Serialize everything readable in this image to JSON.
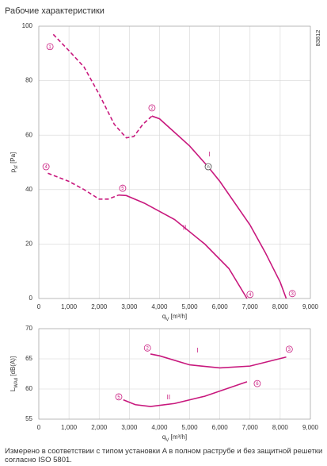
{
  "title": "Рабочие характеристики",
  "code": "83812",
  "chart_data": [
    {
      "type": "line",
      "ylabel": {
        "main": "p",
        "sub": "sf",
        "unit": " [Pa]"
      },
      "xlabel": {
        "main": "q",
        "sub": "V",
        "unit": " [m³/h]"
      },
      "xlim": [
        0,
        9000
      ],
      "ylim": [
        0,
        100
      ],
      "grid": true,
      "color": "#c8187d",
      "xticks": [
        0,
        {
          "value": 1000,
          "label": "1,000"
        },
        {
          "value": 2000,
          "label": "2,000"
        },
        {
          "value": 3000,
          "label": "3,000"
        },
        {
          "value": 4000,
          "label": "4,000"
        },
        {
          "value": 5000,
          "label": "5,000"
        },
        {
          "value": 6000,
          "label": "6,000"
        },
        {
          "value": 7000,
          "label": "7,000"
        },
        {
          "value": 8000,
          "label": "8,000"
        },
        {
          "value": 9000,
          "label": "9,000"
        }
      ],
      "yticks": [
        0,
        20,
        40,
        60,
        80,
        100
      ],
      "series": [
        {
          "line_style": "dashed",
          "x": [
            480,
            1000,
            1500,
            2000,
            2500,
            2900,
            3150,
            3450,
            3750
          ],
          "values": [
            97,
            91,
            85,
            75,
            64,
            59,
            59.5,
            64,
            67
          ]
        },
        {
          "line_style": "solid",
          "x": [
            3750,
            4000,
            4500,
            5000,
            5600,
            6000,
            7000,
            7500,
            8000,
            8200
          ],
          "values": [
            67,
            66,
            61,
            56,
            48.5,
            43,
            27,
            17,
            6,
            0
          ]
        },
        {
          "line_style": "dashed",
          "x": [
            300,
            1000,
            1500,
            2000,
            2300,
            2650
          ],
          "values": [
            46,
            43,
            40,
            36.5,
            36.5,
            38
          ]
        },
        {
          "line_style": "solid",
          "x": [
            2650,
            2900,
            3500,
            4500,
            5500,
            6300,
            6900
          ],
          "values": [
            38,
            37.8,
            35,
            29,
            20,
            11,
            0
          ]
        }
      ],
      "annotations": [
        {
          "text": "1",
          "x": 370,
          "y": 92.5,
          "circle": true
        },
        {
          "text": "2",
          "x": 3750,
          "y": 70,
          "circle": true
        },
        {
          "text": "n",
          "x": 5615,
          "y": 48.4,
          "circle": true,
          "color": "#444"
        },
        {
          "text": "3",
          "x": 8400,
          "y": 1.8,
          "circle": true
        },
        {
          "text": "4",
          "x": 7000,
          "y": 1.5,
          "circle": true
        },
        {
          "text": "5",
          "x": 2780,
          "y": 40.5,
          "circle": true
        },
        {
          "text": "4",
          "x": 240,
          "y": 48.4,
          "circle": true
        },
        {
          "text": "I",
          "x": 5650,
          "y": 53,
          "circle": false
        },
        {
          "text": "II",
          "x": 4830,
          "y": 26,
          "circle": false
        }
      ]
    },
    {
      "type": "line",
      "ylabel": {
        "main": "L",
        "sub": "WAd",
        "unit": " [dB(A)]"
      },
      "xlabel": {
        "main": "q",
        "sub": "V",
        "unit": " [m³/h]"
      },
      "xlim": [
        0,
        9000
      ],
      "ylim": [
        55,
        70
      ],
      "grid": true,
      "color": "#c8187d",
      "xticks": [
        0,
        {
          "value": 1000,
          "label": "1,000"
        },
        {
          "value": 2000,
          "label": "2,000"
        },
        {
          "value": 3000,
          "label": "3,000"
        },
        {
          "value": 4000,
          "label": "4,000"
        },
        {
          "value": 5000,
          "label": "5,000"
        },
        {
          "value": 6000,
          "label": "6,000"
        },
        {
          "value": 7000,
          "label": "7,000"
        },
        {
          "value": 8000,
          "label": "8,000"
        },
        {
          "value": 9000,
          "label": "9,000"
        }
      ],
      "yticks": [
        55,
        60,
        65,
        70
      ],
      "series": [
        {
          "line_style": "solid",
          "x": [
            3700,
            4000,
            5000,
            6000,
            7000,
            8200
          ],
          "values": [
            65.8,
            65.5,
            64,
            63.5,
            63.8,
            65.3
          ]
        },
        {
          "line_style": "solid",
          "x": [
            2800,
            3200,
            3700,
            4500,
            5500,
            6900
          ],
          "values": [
            58.2,
            57.4,
            57.1,
            57.6,
            58.8,
            61.2
          ]
        }
      ],
      "annotations": [
        {
          "text": "2",
          "x": 3600,
          "y": 66.8,
          "circle": true
        },
        {
          "text": "3",
          "x": 8300,
          "y": 66.6,
          "circle": true
        },
        {
          "text": "5",
          "x": 2650,
          "y": 58.7,
          "circle": true
        },
        {
          "text": "6",
          "x": 7240,
          "y": 60.9,
          "circle": true
        },
        {
          "text": "I",
          "x": 5260,
          "y": 66.4,
          "circle": false
        },
        {
          "text": "II",
          "x": 4300,
          "y": 58.6,
          "circle": false
        }
      ]
    }
  ],
  "footnote": "Измерено в соответствии с типом установки A в полном раструбе и без защитной решетки согласно ISO 5801."
}
